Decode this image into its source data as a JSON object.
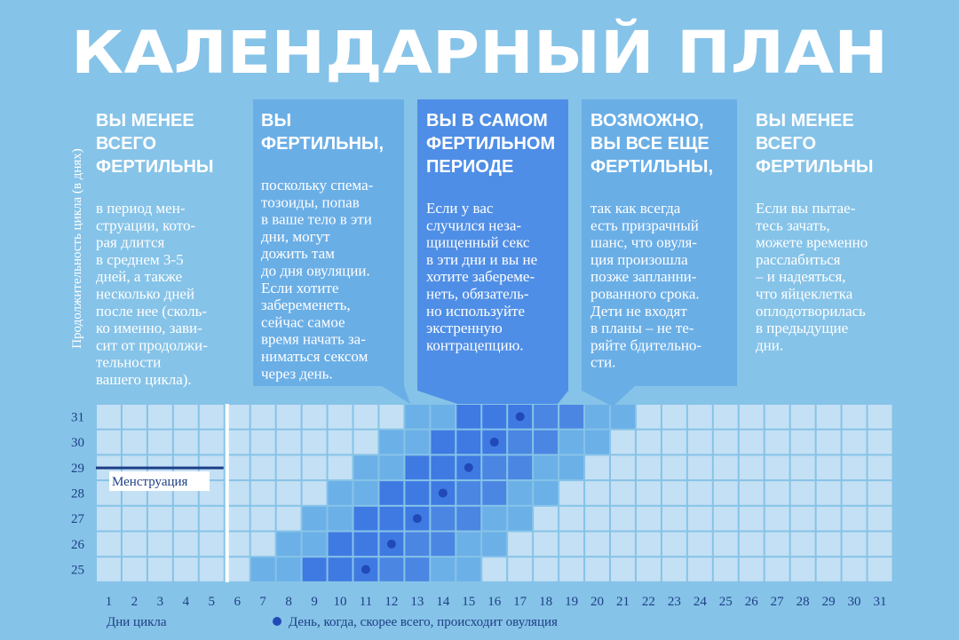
{
  "title": "КАЛЕНДАРНЫЙ ПЛАН",
  "y_axis_label": "Продолжительность цикла (в днях)",
  "panels": [
    {
      "heading": [
        "ВЫ МЕНЕЕ",
        "ВСЕГО",
        "ФЕРТИЛЬНЫ"
      ],
      "body": [
        "в период мен-",
        "струации, кото-",
        "рая длится",
        "в среднем 3-5",
        "дней, а также",
        "несколько дней",
        "после нее (сколь-",
        "ко именно, зави-",
        "сит от продолжи-",
        "тельности",
        "вашего цикла)."
      ]
    },
    {
      "heading": [
        "ВЫ",
        "ФЕРТИЛЬНЫ,"
      ],
      "body": [
        "поскольку спема-",
        "тозоиды, попав",
        "в ваше тело в эти",
        "дни, могут",
        "дожить там",
        "до дня овуляции.",
        "Если хотите",
        "забеременеть,",
        "сейчас самое",
        "время начать за-",
        "ниматься сексом",
        "через день."
      ]
    },
    {
      "heading": [
        "ВЫ В САМОМ",
        "ФЕРТИЛЬНОМ",
        "ПЕРИОДЕ"
      ],
      "body": [
        "Если у вас",
        "случился неза-",
        "щищенный секс",
        "в эти дни и вы не",
        "хотите забереме-",
        "неть, обязатель-",
        "но используйте",
        "экстренную",
        "контрацепцию."
      ]
    },
    {
      "heading": [
        "ВОЗМОЖНО,",
        "ВЫ ВСЕ ЕЩЕ",
        "ФЕРТИЛЬНЫ,"
      ],
      "body": [
        "так как всегда",
        "есть призрачный",
        "шанс, что овуля-",
        "ция произошла",
        "позже запланни-",
        "рованного срока.",
        "Дети не входят",
        "в планы – не те-",
        "ряйте бдительно-",
        "сти."
      ]
    },
    {
      "heading": [
        "ВЫ МЕНЕЕ",
        "ВСЕГО",
        "ФЕРТИЛЬНЫ"
      ],
      "body": [
        "Если вы пытае-",
        "тесь зачать,",
        "можете временно",
        "расслабиться",
        "– и надеяться,",
        "что яйцеклетка",
        "оплодотворилась",
        "в предыдущие",
        "дни."
      ]
    }
  ],
  "grid": {
    "days": [
      1,
      2,
      3,
      4,
      5,
      6,
      7,
      8,
      9,
      10,
      11,
      12,
      13,
      14,
      15,
      16,
      17,
      18,
      19,
      20,
      21,
      22,
      23,
      24,
      25,
      26,
      27,
      28,
      29,
      30,
      31
    ],
    "rows": [
      {
        "length": 31,
        "ovulation_day": 17
      },
      {
        "length": 30,
        "ovulation_day": 16
      },
      {
        "length": 29,
        "ovulation_day": 15
      },
      {
        "length": 28,
        "ovulation_day": 14
      },
      {
        "length": 27,
        "ovulation_day": 13
      },
      {
        "length": 26,
        "ovulation_day": 12
      },
      {
        "length": 25,
        "ovulation_day": 11
      }
    ],
    "menstruation": {
      "label": "Менструация",
      "last_day": 5
    }
  },
  "x_axis_label": "Дни цикла",
  "legend": "День, когда, скорее всего, происходит овуляция"
}
